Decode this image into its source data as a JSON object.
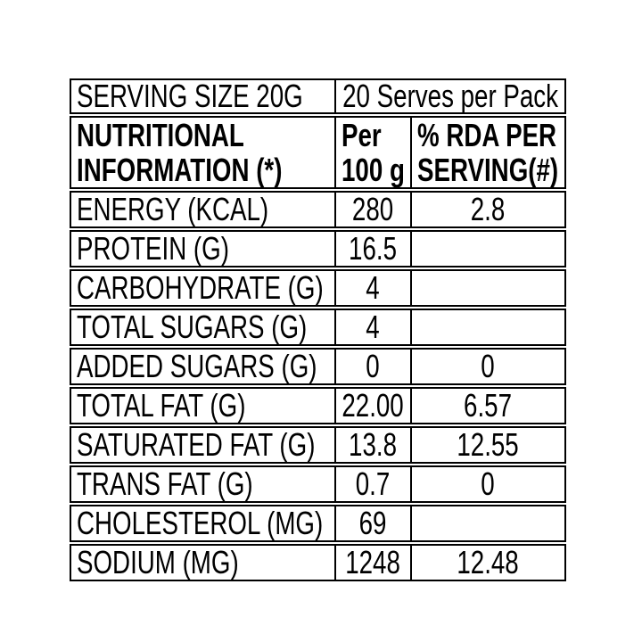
{
  "page": {
    "background": "#ffffff"
  },
  "table": {
    "border_color": "#000000",
    "text_color": "#000000",
    "serving_row": {
      "serving_size": "SERVING SIZE 20G",
      "serves_per_pack": "20 Serves per Pack"
    },
    "header": {
      "title_line1": "NUTRITIONAL",
      "title_line2": "INFORMATION (*)",
      "per_line1": "Per",
      "per_line2": "100 g",
      "rda_line1": "% RDA PER",
      "rda_line2": "SERVING(#)"
    },
    "rows": [
      {
        "label": "ENERGY (KCAL)",
        "per100g": "280",
        "rda": "2.8"
      },
      {
        "label": "PROTEIN (G)",
        "per100g": "16.5",
        "rda": ""
      },
      {
        "label": "CARBOHYDRATE (G)",
        "per100g": "4",
        "rda": ""
      },
      {
        "label": "TOTAL SUGARS (G)",
        "per100g": "4",
        "rda": ""
      },
      {
        "label": "ADDED SUGARS (G)",
        "per100g": "0",
        "rda": "0"
      },
      {
        "label": "TOTAL FAT (G)",
        "per100g": "22.00",
        "rda": "6.57"
      },
      {
        "label": "SATURATED FAT (G)",
        "per100g": "13.8",
        "rda": "12.55"
      },
      {
        "label": "TRANS FAT (G)",
        "per100g": "0.7",
        "rda": "0"
      },
      {
        "label": "CHOLESTEROL (MG)",
        "per100g": "69",
        "rda": ""
      },
      {
        "label": "SODIUM (MG)",
        "per100g": "1248",
        "rda": "12.48"
      }
    ]
  }
}
